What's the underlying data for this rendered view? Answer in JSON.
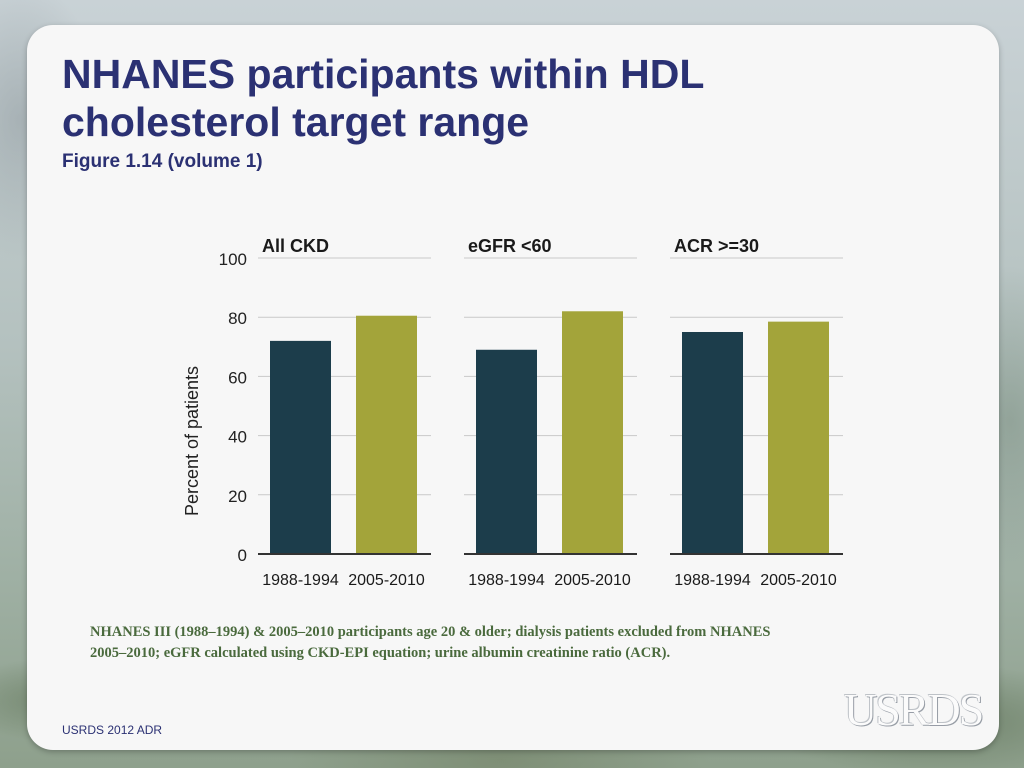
{
  "slide": {
    "title_line1": "NHANES participants within HDL",
    "title_line2": "cholesterol target range",
    "subtitle": "Figure 1.14 (volume 1)",
    "footnote_line1": "NHANES III (1988–1994) & 2005–2010 participants age 20 & older; dialysis patients excluded from NHANES",
    "footnote_line2": "2005–2010; eGFR calculated using CKD-EPI equation; urine albumin creatinine ratio (ACR).",
    "source": "USRDS 2012 ADR",
    "logo_text": "USRDS"
  },
  "colors": {
    "series_1988": "#1c3d4b",
    "series_2005": "#a3a43a",
    "title": "#2b3173",
    "footnote": "#4a6a3d",
    "grid": "#c9c9c9"
  },
  "chart_data": {
    "type": "bar",
    "ylabel": "Percent of patients",
    "ylim": [
      0,
      100
    ],
    "yticks": [
      0,
      20,
      40,
      60,
      80,
      100
    ],
    "grid": true,
    "categories": [
      "1988-1994",
      "2005-2010"
    ],
    "panels": [
      {
        "title": "All CKD",
        "values": [
          72,
          80.5
        ]
      },
      {
        "title": "eGFR <60",
        "values": [
          69,
          82
        ]
      },
      {
        "title": "ACR >=30",
        "values": [
          75,
          78.5
        ]
      }
    ]
  }
}
